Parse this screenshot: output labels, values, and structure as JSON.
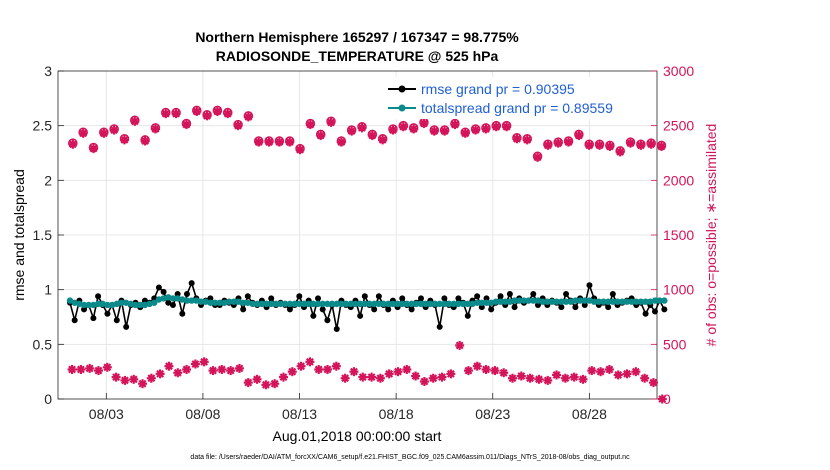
{
  "chart_data": {
    "type": "line",
    "title": [
      "Northern Hemisphere 165297 / 167347 = 98.775%",
      "RADIOSONDE_TEMPERATURE @ 525 hPa"
    ],
    "xlabel": "Aug.01,2018 00:00:00 start",
    "ylabel_left": "rmse and totalspread",
    "ylabel_right": "# of obs: o=possible; ∗=assimilated",
    "footer": "data file: /Users/raeder/DAI/ATM_forcXX/CAM6_setup/f.e21.FHIST_BGC.f09_025.CAM6assim.011/Diags_NTrS_2018-08/obs_diag_output.nc",
    "x_range_days": [
      0.5,
      31.5
    ],
    "ylim_left": [
      0,
      3
    ],
    "ylim_right": [
      0,
      3000
    ],
    "x_ticks": [
      {
        "day": 3,
        "label": "08/03"
      },
      {
        "day": 8,
        "label": "08/08"
      },
      {
        "day": 13,
        "label": "08/13"
      },
      {
        "day": 18,
        "label": "08/18"
      },
      {
        "day": 23,
        "label": "08/23"
      },
      {
        "day": 28,
        "label": "08/28"
      }
    ],
    "y_ticks_left": [
      "0",
      "0.5",
      "1",
      "1.5",
      "2",
      "2.5",
      "3"
    ],
    "y_ticks_right": [
      "0",
      "500",
      "1000",
      "1500",
      "2000",
      "2500",
      "3000"
    ],
    "legend": [
      {
        "label": "rmse grand pr = 0.90395",
        "color": "#000000"
      },
      {
        "label": "totalspread grand pr = 0.89559",
        "color": "#0a8a8a"
      }
    ],
    "colors": {
      "rmse": "#000000",
      "spread": "#0a8a8a",
      "obs": "#d4145a",
      "right_axis": "#d4145a",
      "legend_text": "#1f5fd6"
    },
    "series": [
      {
        "name": "rmse",
        "axis": "left",
        "values": [
          0.88,
          0.72,
          0.9,
          0.82,
          0.86,
          0.74,
          0.94,
          0.86,
          0.78,
          0.86,
          0.72,
          0.9,
          0.66,
          0.86,
          0.88,
          0.84,
          0.9,
          0.88,
          0.92,
          1.02,
          0.98,
          0.88,
          0.86,
          0.96,
          0.78,
          0.96,
          1.06,
          0.92,
          0.86,
          0.9,
          0.92,
          0.86,
          0.86,
          0.9,
          0.88,
          0.86,
          0.92,
          0.82,
          0.94,
          0.88,
          0.86,
          0.9,
          0.84,
          0.92,
          0.86,
          0.88,
          0.86,
          0.82,
          0.86,
          0.94,
          0.84,
          0.9,
          0.76,
          0.92,
          0.82,
          0.72,
          0.86,
          0.64,
          0.9,
          0.86,
          0.84,
          0.9,
          0.76,
          0.94,
          0.86,
          0.82,
          0.94,
          0.86,
          0.82,
          0.9,
          0.84,
          0.92,
          0.86,
          0.82,
          0.88,
          0.92,
          0.84,
          0.9,
          0.86,
          0.66,
          0.92,
          0.86,
          0.84,
          0.92,
          0.88,
          0.76,
          0.9,
          0.94,
          0.84,
          0.92,
          0.82,
          0.88,
          0.94,
          0.86,
          0.96,
          0.84,
          0.92,
          0.88,
          0.9,
          0.96,
          0.86,
          0.92,
          0.86,
          0.9,
          0.88,
          0.84,
          0.96,
          0.9,
          0.84,
          0.92,
          0.86,
          1.04,
          0.92,
          0.86,
          0.88,
          0.84,
          0.96,
          0.86,
          0.88,
          0.9,
          0.92,
          0.86,
          0.88,
          0.78,
          0.86,
          0.8,
          0.9,
          0.82
        ]
      },
      {
        "name": "totalspread",
        "axis": "left",
        "values": [
          0.9,
          0.88,
          0.87,
          0.86,
          0.86,
          0.86,
          0.87,
          0.87,
          0.86,
          0.86,
          0.87,
          0.88,
          0.88,
          0.87,
          0.86,
          0.86,
          0.86,
          0.87,
          0.88,
          0.91,
          0.92,
          0.93,
          0.92,
          0.92,
          0.91,
          0.9,
          0.9,
          0.9,
          0.89,
          0.89,
          0.88,
          0.88,
          0.88,
          0.88,
          0.89,
          0.89,
          0.89,
          0.88,
          0.88,
          0.87,
          0.87,
          0.87,
          0.87,
          0.87,
          0.87,
          0.87,
          0.87,
          0.87,
          0.87,
          0.87,
          0.87,
          0.87,
          0.87,
          0.87,
          0.87,
          0.87,
          0.87,
          0.87,
          0.87,
          0.87,
          0.87,
          0.87,
          0.87,
          0.87,
          0.87,
          0.87,
          0.87,
          0.87,
          0.87,
          0.87,
          0.87,
          0.87,
          0.87,
          0.87,
          0.87,
          0.87,
          0.87,
          0.87,
          0.87,
          0.87,
          0.87,
          0.87,
          0.87,
          0.87,
          0.87,
          0.87,
          0.87,
          0.88,
          0.88,
          0.88,
          0.88,
          0.89,
          0.89,
          0.89,
          0.89,
          0.9,
          0.9,
          0.9,
          0.9,
          0.9,
          0.9,
          0.89,
          0.89,
          0.89,
          0.89,
          0.89,
          0.89,
          0.89,
          0.9,
          0.9,
          0.9,
          0.9,
          0.89,
          0.89,
          0.89,
          0.89,
          0.89,
          0.89,
          0.89,
          0.89,
          0.89,
          0.89,
          0.89,
          0.89,
          0.89,
          0.9,
          0.9,
          0.9
        ]
      },
      {
        "name": "obs_possible",
        "axis": "right",
        "marker": "circle",
        "values": [
          2340,
          2440,
          2300,
          2440,
          2470,
          2380,
          2550,
          2370,
          2480,
          2620,
          2620,
          2520,
          2640,
          2600,
          2640,
          2620,
          2510,
          2590,
          2360,
          2360,
          2360,
          2360,
          2290,
          2520,
          2420,
          2540,
          2360,
          2460,
          2490,
          2420,
          2380,
          2470,
          2500,
          2480,
          2530,
          2460,
          2460,
          2520,
          2440,
          2470,
          2480,
          2500,
          2500,
          2390,
          2380,
          2220,
          2330,
          2350,
          2360,
          2420,
          2330,
          2330,
          2320,
          2270,
          2350,
          2330,
          2340,
          2320
        ]
      },
      {
        "name": "obs_assimilated",
        "axis": "right",
        "marker": "asterisk",
        "values": [
          2330,
          2430,
          2290,
          2430,
          2460,
          2370,
          2540,
          2360,
          2470,
          2610,
          2610,
          2510,
          2630,
          2590,
          2630,
          2610,
          2500,
          2580,
          2350,
          2350,
          2350,
          2350,
          2280,
          2510,
          2410,
          2530,
          2350,
          2450,
          2480,
          2410,
          2370,
          2460,
          2490,
          2470,
          2520,
          2450,
          2450,
          2510,
          2430,
          2460,
          2470,
          2490,
          2490,
          2380,
          2370,
          2210,
          2320,
          2340,
          2350,
          2410,
          2320,
          2320,
          2310,
          2260,
          2340,
          2320,
          2330,
          2310
        ]
      },
      {
        "name": "obs_lower",
        "axis": "right",
        "marker": "asterisk",
        "values": [
          270,
          270,
          280,
          260,
          290,
          200,
          170,
          180,
          140,
          190,
          230,
          300,
          240,
          270,
          320,
          340,
          260,
          270,
          260,
          280,
          150,
          180,
          130,
          140,
          200,
          250,
          300,
          340,
          270,
          270,
          300,
          190,
          250,
          200,
          200,
          190,
          230,
          250,
          270,
          210,
          160,
          190,
          200,
          230,
          490,
          260,
          300,
          270,
          260,
          240,
          190,
          210,
          190,
          180,
          170,
          220,
          190,
          200,
          180,
          260,
          250,
          270,
          220,
          230,
          250,
          190,
          150,
          0
        ]
      }
    ]
  }
}
